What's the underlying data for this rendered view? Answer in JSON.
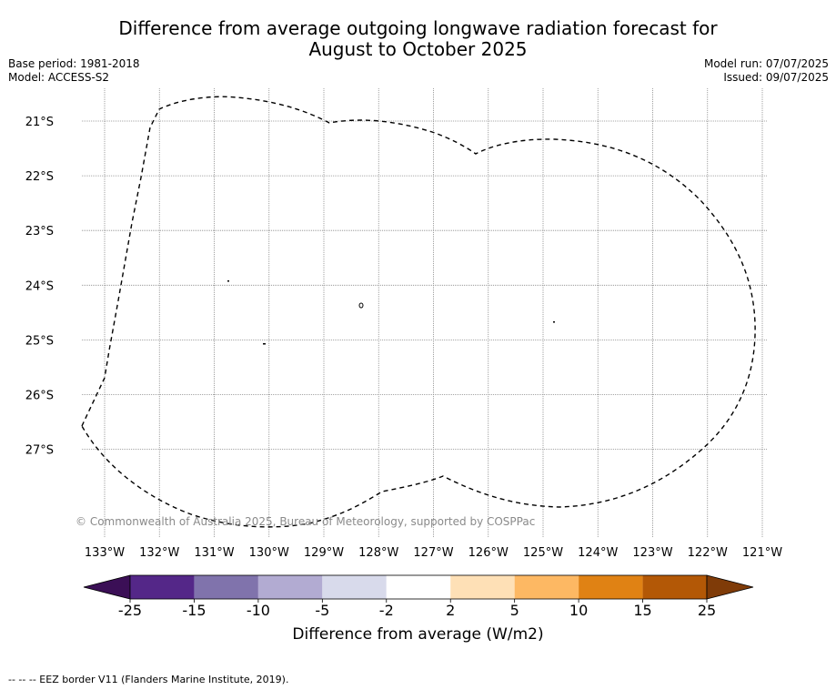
{
  "title": {
    "line1": "Difference from average outgoing longwave radiation forecast for",
    "line2": "August to October 2025"
  },
  "meta": {
    "base_period": "Base period: 1981-2018",
    "model": "Model: ACCESS-S2",
    "model_run": "Model run: 07/07/2025",
    "issued": "Issued: 09/07/2025"
  },
  "map": {
    "latitude_labels": [
      "21°S",
      "22°S",
      "23°S",
      "24°S",
      "25°S",
      "26°S",
      "27°S"
    ],
    "longitude_labels": [
      "133°W",
      "132°W",
      "131°W",
      "130°W",
      "129°W",
      "128°W",
      "127°W",
      "126°W",
      "125°W",
      "124°W",
      "123°W",
      "122°W",
      "121°W"
    ],
    "grid": true,
    "credit": "© Commonwealth of Australia 2025, Bureau of Meteorology, supported by COSPPac"
  },
  "colorbar": {
    "label": "Difference from average (W/m2)",
    "tick_labels": [
      "-25",
      "-15",
      "-10",
      "-5",
      "-2",
      "2",
      "5",
      "10",
      "15",
      "25"
    ],
    "colors": [
      "#3b0f56",
      "#542788",
      "#8073ac",
      "#b2abd2",
      "#d8daeb",
      "#ffffff",
      "#fee0b6",
      "#fdb863",
      "#e08214",
      "#b35806",
      "#7f3b08"
    ]
  },
  "footer": "--  --  -- EEZ border V11 (Flanders Marine Institute, 2019)."
}
